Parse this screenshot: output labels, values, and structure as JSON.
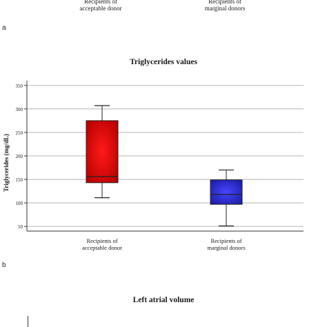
{
  "top_fragment": {
    "labels": [
      "Recipients of\nacceptable donor",
      "Recipients of\nmarginal donors"
    ],
    "panel_label": "a"
  },
  "panel_b_label": "b",
  "next_title": "Left atrial volume",
  "chart_data": {
    "type": "boxplot",
    "title": "Triglycerides values",
    "ylabel": "Triglycerides (mg/dL)",
    "xlabel": "",
    "ylim": [
      40,
      360
    ],
    "yticks": [
      50,
      100,
      150,
      200,
      250,
      300,
      350
    ],
    "grid": true,
    "categories": [
      "Recipients of\nacceptable donor",
      "Recipients of\nmarginal donors"
    ],
    "series": [
      {
        "min": 111,
        "q1": 143,
        "median": 156,
        "q3": 275,
        "max": 307,
        "color": "#e00000"
      },
      {
        "min": 51,
        "q1": 97,
        "median": 118,
        "q3": 149,
        "max": 170,
        "color": "#2a2ad8"
      }
    ]
  }
}
